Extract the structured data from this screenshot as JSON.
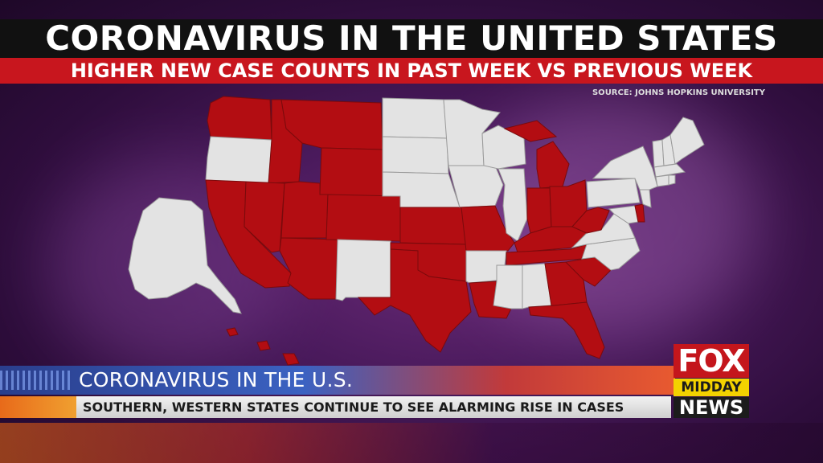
{
  "header": {
    "title": "CORONAVIRUS IN THE UNITED STATES",
    "subtitle": "HIGHER NEW CASE COUNTS IN PAST WEEK VS PREVIOUS WEEK",
    "source": "SOURCE: JOHNS HOPKINS UNIVERSITY"
  },
  "colors": {
    "higher_cases": "#b30d12",
    "not_higher": "#e3e3e3",
    "title_bar": "#111111",
    "subtitle_bar": "#c8161e"
  },
  "map": {
    "states_higher": [
      "WA",
      "ID",
      "MT",
      "NV",
      "UT",
      "WY",
      "CO",
      "CA",
      "AZ",
      "KS",
      "MO",
      "OK",
      "TX",
      "LA",
      "MI",
      "IN",
      "OH",
      "KY",
      "WV",
      "TN",
      "GA",
      "SC",
      "FL",
      "DE",
      "HI"
    ],
    "states_not_higher": [
      "OR",
      "ND",
      "SD",
      "NE",
      "MN",
      "WI",
      "IA",
      "IL",
      "NM",
      "AR",
      "MS",
      "AL",
      "NC",
      "VA",
      "MD",
      "PA",
      "NY",
      "VT",
      "NH",
      "ME",
      "MA",
      "CT",
      "RI",
      "NJ",
      "AK"
    ]
  },
  "lower_third": {
    "headline": "CORONAVIRUS IN THE U.S.",
    "ticker": "SOUTHERN, WESTERN STATES CONTINUE TO SEE ALARMING RISE IN CASES"
  },
  "logo": {
    "line1": "FOX",
    "line2": "MIDDAY",
    "line3": "NEWS"
  }
}
